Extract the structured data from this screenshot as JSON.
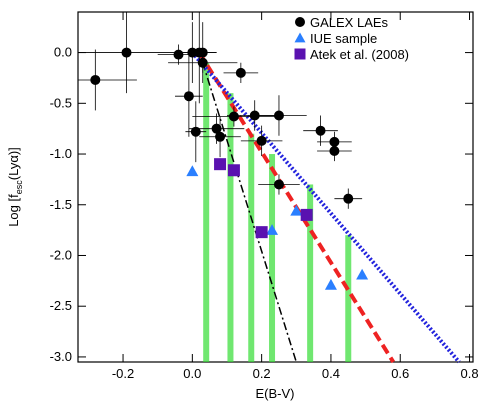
{
  "chart_data": {
    "type": "scatter",
    "x_label": "E(B-V)",
    "y_label": {
      "main": "Log [f",
      "sub": "esc",
      "tail": "(Lyα)]"
    },
    "xlim": [
      -0.33,
      0.81
    ],
    "ylim": [
      -3.05,
      0.4
    ],
    "xticks": [
      {
        "value": -0.2,
        "label": "-0.2"
      },
      {
        "value": 0,
        "label": "0.0"
      },
      {
        "value": 0.2,
        "label": "0.2"
      },
      {
        "value": 0.4,
        "label": "0.4"
      },
      {
        "value": 0.6,
        "label": "0.6"
      },
      {
        "value": 0.8,
        "label": "0.8"
      }
    ],
    "yticks": [
      {
        "value": 0,
        "label": "0.0"
      },
      {
        "value": -0.5,
        "label": "-0.5"
      },
      {
        "value": -1,
        "label": "-1.0"
      },
      {
        "value": -1.5,
        "label": "-1.5"
      },
      {
        "value": -2,
        "label": "-2.0"
      },
      {
        "value": -2.5,
        "label": "-2.5"
      },
      {
        "value": -3,
        "label": "-3.0"
      }
    ],
    "legend": "upper right",
    "strips": {
      "color": "#33dd33",
      "x": [
        0.04,
        0.11,
        0.17,
        0.23,
        0.34,
        0.45
      ],
      "ymin": [
        -3.05,
        -3.05,
        -3.05,
        -3.05,
        -3.05,
        -3.05
      ],
      "ymax": [
        -0.1,
        -0.4,
        -0.8,
        -1.0,
        -1.3,
        -1.8
      ]
    },
    "lines": [
      {
        "color": "#000000",
        "style": "dashdot",
        "x": [
          0.03,
          0.3
        ],
        "y": [
          -0.1,
          -3.05
        ]
      },
      {
        "color": "#ee2222",
        "style": "dashed",
        "x": [
          0.02,
          0.58
        ],
        "y": [
          0,
          -3.05
        ]
      },
      {
        "color": "#2222dd",
        "style": "dotted",
        "x": [
          0.0,
          0.77
        ],
        "y": [
          0,
          -3.05
        ]
      }
    ],
    "series": [
      {
        "name": "GALEX LAEs",
        "color": "#000000",
        "marker": "circle",
        "x": [
          -0.28,
          -0.19,
          -0.04,
          -0.01,
          0.0,
          0.02,
          0.03,
          0.03,
          0.01,
          0.07,
          0.08,
          0.14,
          0.12,
          0.18,
          0.25,
          0.2,
          0.25,
          0.37,
          0.41,
          0.41,
          0.45
        ],
        "y": [
          -0.27,
          0.0,
          -0.02,
          -0.43,
          0.0,
          0.0,
          0.0,
          -0.1,
          -0.78,
          -0.75,
          -0.83,
          -0.2,
          -0.63,
          -0.62,
          -0.62,
          -0.87,
          -1.3,
          -0.77,
          -0.88,
          -0.97,
          -1.44
        ],
        "xerr": [
          0.12,
          0.14,
          0.06,
          0.04,
          0.03,
          0.05,
          0.04,
          0.1,
          0.03,
          0.08,
          0.06,
          0.05,
          0.12,
          0.08,
          0.08,
          0.06,
          0.06,
          0.05,
          0.05,
          0.05,
          0.04
        ],
        "yerr": [
          0.3,
          0.4,
          0.1,
          0.4,
          0.3,
          0.5,
          0.3,
          0.1,
          0.3,
          0.15,
          0.2,
          0.1,
          0.1,
          0.15,
          0.2,
          0.15,
          0.1,
          0.15,
          0.1,
          0.1,
          0.1
        ]
      },
      {
        "name": "IUE sample",
        "color": "#2a7fff",
        "marker": "triangle",
        "x": [
          0.0,
          0.2,
          0.23,
          0.3,
          0.4,
          0.49
        ],
        "y": [
          -1.17,
          -1.77,
          -1.75,
          -1.56,
          -2.29,
          -2.19
        ]
      },
      {
        "name": "Atek et al. (2008)",
        "color": "#5a12b0",
        "marker": "square",
        "x": [
          0.08,
          0.12,
          0.2,
          0.33
        ],
        "y": [
          -1.1,
          -1.16,
          -1.77,
          -1.6
        ]
      }
    ]
  }
}
